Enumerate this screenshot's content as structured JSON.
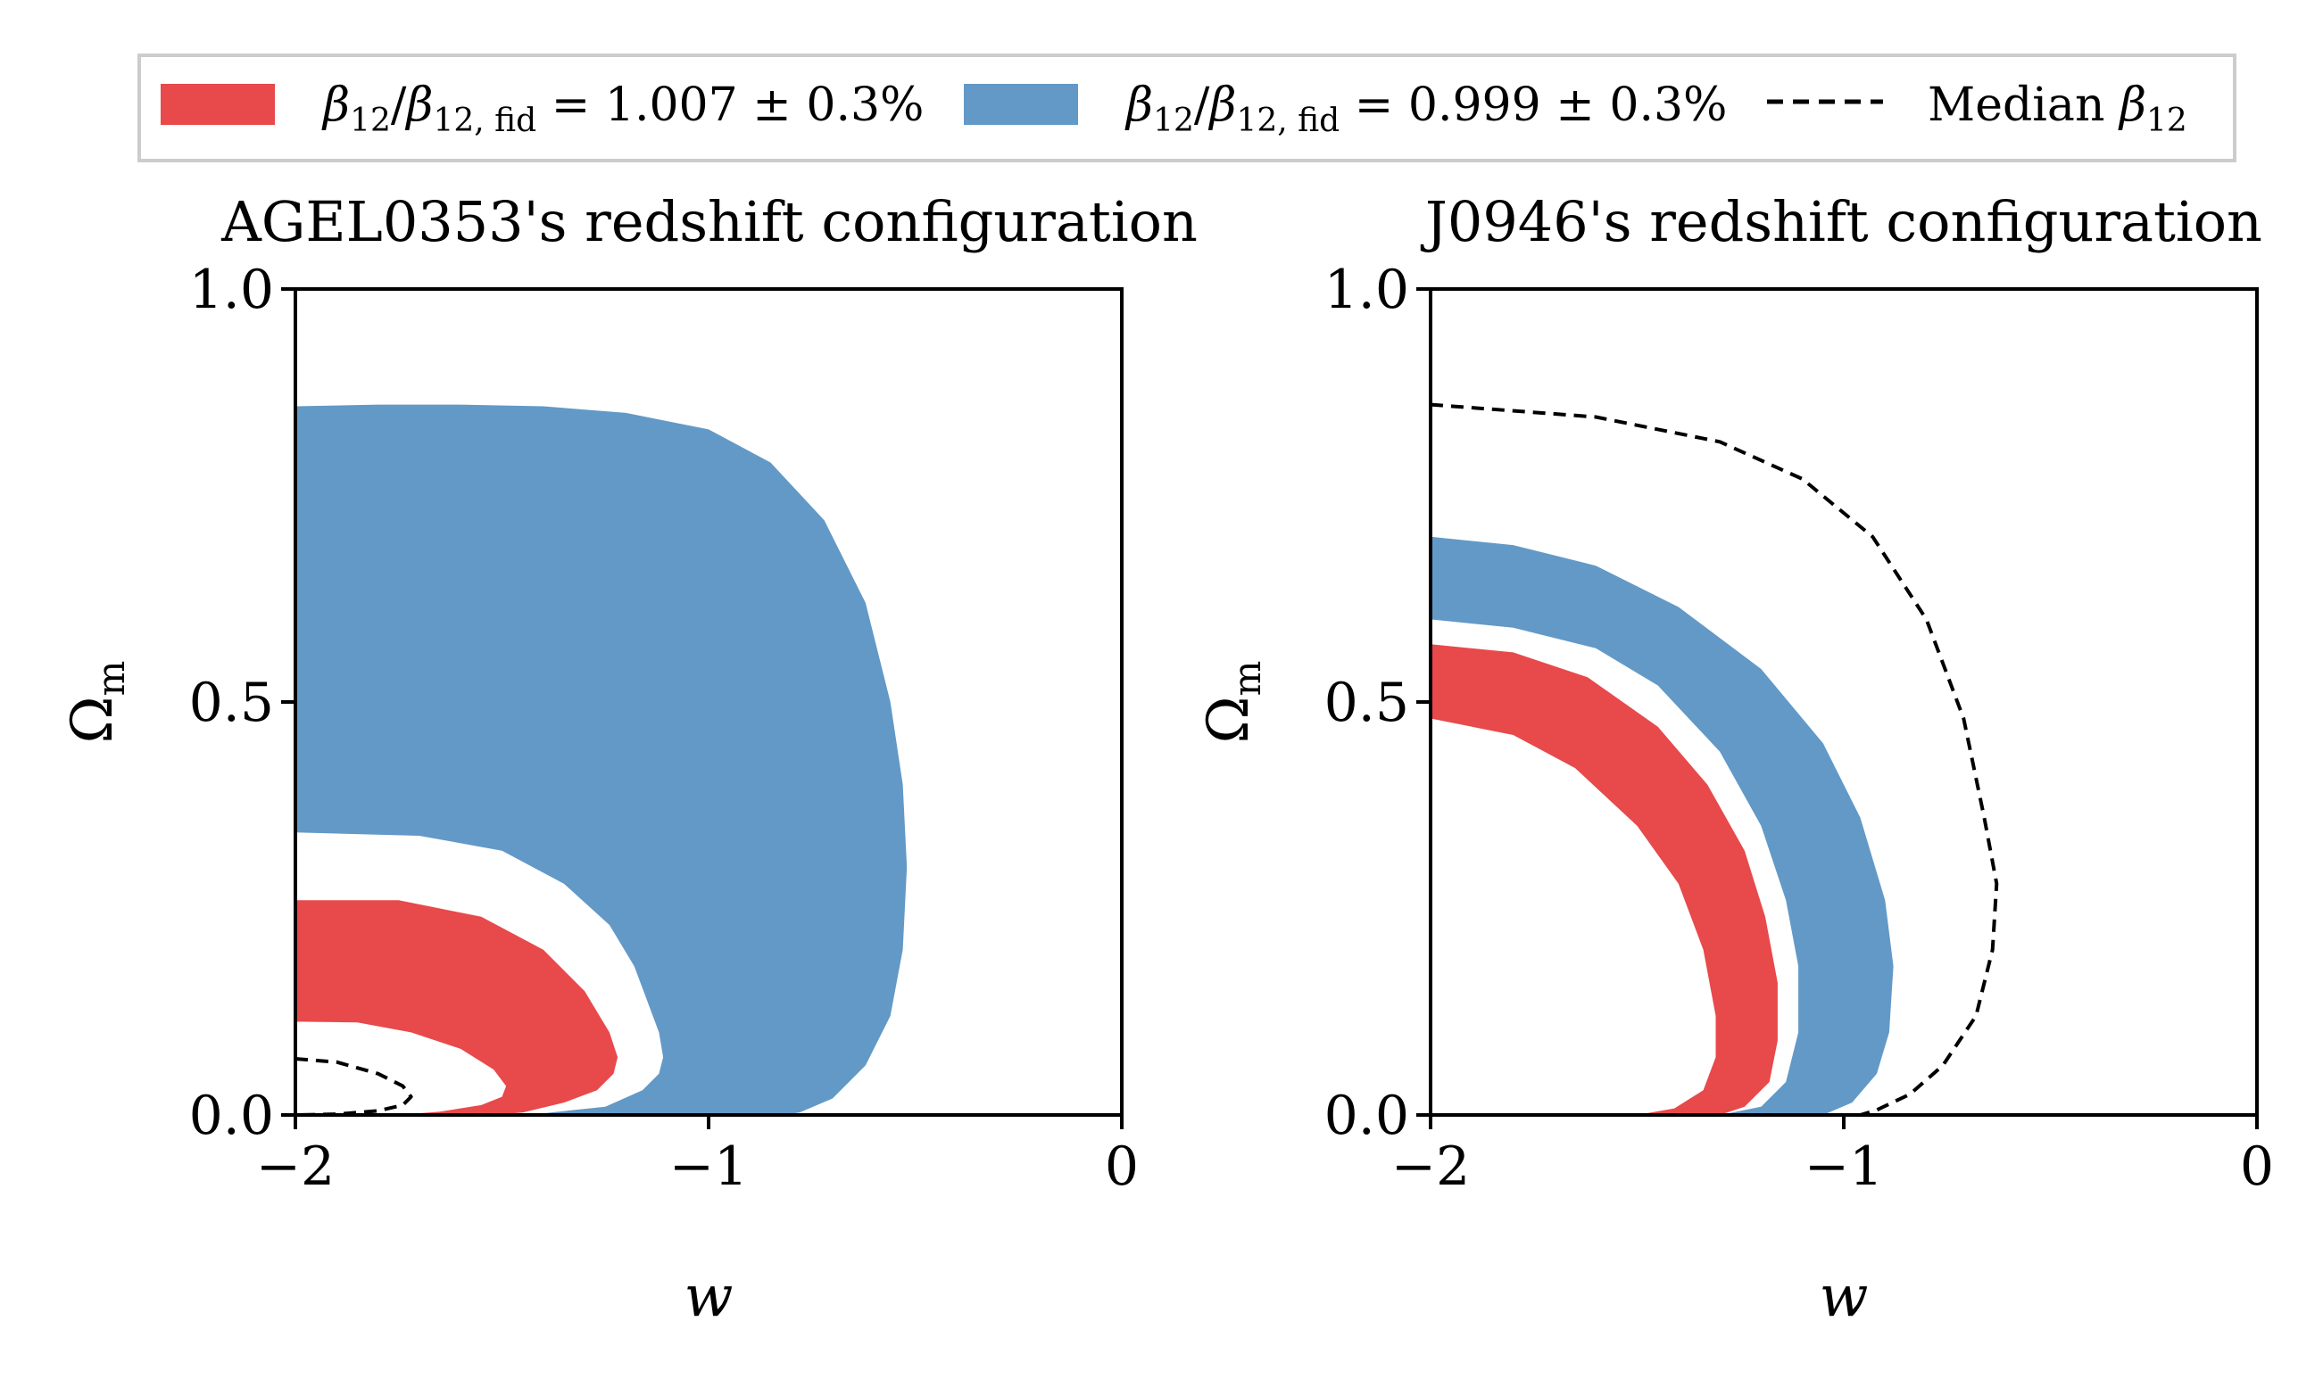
{
  "chart_data": [
    {
      "type": "area",
      "title": "AGEL0353's redshift configuration",
      "xlabel": "w",
      "ylabel": "Ω",
      "ylabel_sub": "m",
      "xlim": [
        -2,
        0
      ],
      "ylim": [
        0,
        1
      ],
      "xticks": [
        {
          "v": -2,
          "label": "−2"
        },
        {
          "v": -1,
          "label": "−1"
        },
        {
          "v": 0,
          "label": "0"
        }
      ],
      "yticks": [
        {
          "v": 0,
          "label": "0.0"
        },
        {
          "v": 0.5,
          "label": "0.5"
        },
        {
          "v": 1,
          "label": "1.0"
        }
      ],
      "series": [
        {
          "name": "blue band",
          "kind": "band",
          "color": "#6299c7",
          "outer": [
            [
              -2,
              0.858
            ],
            [
              -1.8,
              0.86
            ],
            [
              -1.6,
              0.86
            ],
            [
              -1.4,
              0.858
            ],
            [
              -1.2,
              0.85
            ],
            [
              -1.0,
              0.83
            ],
            [
              -0.85,
              0.79
            ],
            [
              -0.72,
              0.72
            ],
            [
              -0.62,
              0.62
            ],
            [
              -0.56,
              0.5
            ],
            [
              -0.53,
              0.4
            ],
            [
              -0.52,
              0.3
            ],
            [
              -0.53,
              0.2
            ],
            [
              -0.56,
              0.12
            ],
            [
              -0.62,
              0.06
            ],
            [
              -0.7,
              0.02
            ],
            [
              -0.78,
              0.003
            ],
            [
              -0.82,
              0
            ]
          ],
          "inner": [
            [
              -2,
              0.342
            ],
            [
              -1.7,
              0.338
            ],
            [
              -1.5,
              0.32
            ],
            [
              -1.35,
              0.28
            ],
            [
              -1.24,
              0.23
            ],
            [
              -1.18,
              0.18
            ],
            [
              -1.15,
              0.14
            ],
            [
              -1.12,
              0.1
            ],
            [
              -1.11,
              0.07
            ],
            [
              -1.12,
              0.05
            ],
            [
              -1.16,
              0.03
            ],
            [
              -1.25,
              0.01
            ],
            [
              -1.4,
              0.002
            ],
            [
              -1.5,
              0
            ]
          ]
        },
        {
          "name": "red band",
          "kind": "band",
          "color": "#e8494b",
          "outer": [
            [
              -2,
              0.26
            ],
            [
              -1.75,
              0.26
            ],
            [
              -1.55,
              0.24
            ],
            [
              -1.4,
              0.2
            ],
            [
              -1.3,
              0.15
            ],
            [
              -1.24,
              0.1
            ],
            [
              -1.22,
              0.07
            ],
            [
              -1.23,
              0.05
            ],
            [
              -1.27,
              0.03
            ],
            [
              -1.35,
              0.015
            ],
            [
              -1.45,
              0.003
            ],
            [
              -1.52,
              0
            ]
          ],
          "inner": [
            [
              -2,
              0.113
            ],
            [
              -1.85,
              0.112
            ],
            [
              -1.72,
              0.1
            ],
            [
              -1.6,
              0.08
            ],
            [
              -1.52,
              0.055
            ],
            [
              -1.49,
              0.035
            ],
            [
              -1.5,
              0.022
            ],
            [
              -1.55,
              0.012
            ],
            [
              -1.65,
              0.004
            ],
            [
              -1.75,
              0
            ]
          ]
        },
        {
          "name": "Median β12",
          "kind": "dashed",
          "color": "#000000",
          "points": [
            [
              -2,
              0.068
            ],
            [
              -1.9,
              0.064
            ],
            [
              -1.8,
              0.05
            ],
            [
              -1.74,
              0.035
            ],
            [
              -1.72,
              0.022
            ],
            [
              -1.74,
              0.012
            ],
            [
              -1.8,
              0.005
            ],
            [
              -1.9,
              0.001
            ],
            [
              -2,
              0
            ]
          ]
        }
      ]
    },
    {
      "type": "area",
      "title": "J0946's redshift configuration",
      "xlabel": "w",
      "ylabel": "Ω",
      "ylabel_sub": "m",
      "xlim": [
        -2,
        0
      ],
      "ylim": [
        0,
        1
      ],
      "xticks": [
        {
          "v": -2,
          "label": "−2"
        },
        {
          "v": -1,
          "label": "−1"
        },
        {
          "v": 0,
          "label": "0"
        }
      ],
      "yticks": [
        {
          "v": 0,
          "label": "0.0"
        },
        {
          "v": 0.5,
          "label": "0.5"
        },
        {
          "v": 1,
          "label": "1.0"
        }
      ],
      "series": [
        {
          "name": "blue band",
          "kind": "band",
          "color": "#6299c7",
          "outer": [
            [
              -2,
              0.7
            ],
            [
              -1.8,
              0.69
            ],
            [
              -1.6,
              0.665
            ],
            [
              -1.4,
              0.615
            ],
            [
              -1.2,
              0.54
            ],
            [
              -1.05,
              0.45
            ],
            [
              -0.96,
              0.36
            ],
            [
              -0.9,
              0.26
            ],
            [
              -0.88,
              0.18
            ],
            [
              -0.89,
              0.1
            ],
            [
              -0.92,
              0.05
            ],
            [
              -0.98,
              0.015
            ],
            [
              -1.05,
              0
            ]
          ],
          "inner": [
            [
              -2,
              0.6
            ],
            [
              -1.8,
              0.59
            ],
            [
              -1.6,
              0.565
            ],
            [
              -1.45,
              0.52
            ],
            [
              -1.3,
              0.44
            ],
            [
              -1.2,
              0.35
            ],
            [
              -1.14,
              0.26
            ],
            [
              -1.11,
              0.18
            ],
            [
              -1.11,
              0.1
            ],
            [
              -1.14,
              0.04
            ],
            [
              -1.2,
              0.01
            ],
            [
              -1.3,
              0
            ]
          ]
        },
        {
          "name": "red band",
          "kind": "band",
          "color": "#e8494b",
          "outer": [
            [
              -2,
              0.57
            ],
            [
              -1.8,
              0.56
            ],
            [
              -1.62,
              0.53
            ],
            [
              -1.45,
              0.47
            ],
            [
              -1.33,
              0.4
            ],
            [
              -1.24,
              0.32
            ],
            [
              -1.19,
              0.24
            ],
            [
              -1.16,
              0.16
            ],
            [
              -1.16,
              0.09
            ],
            [
              -1.18,
              0.04
            ],
            [
              -1.24,
              0.01
            ],
            [
              -1.3,
              0
            ]
          ],
          "inner": [
            [
              -2,
              0.48
            ],
            [
              -1.8,
              0.46
            ],
            [
              -1.65,
              0.42
            ],
            [
              -1.5,
              0.35
            ],
            [
              -1.4,
              0.28
            ],
            [
              -1.34,
              0.2
            ],
            [
              -1.31,
              0.12
            ],
            [
              -1.31,
              0.07
            ],
            [
              -1.34,
              0.03
            ],
            [
              -1.41,
              0.008
            ],
            [
              -1.5,
              0
            ]
          ]
        },
        {
          "name": "Median β12",
          "kind": "dashed",
          "color": "#000000",
          "points": [
            [
              -2,
              0.86
            ],
            [
              -1.6,
              0.845
            ],
            [
              -1.3,
              0.815
            ],
            [
              -1.1,
              0.77
            ],
            [
              -0.93,
              0.7
            ],
            [
              -0.8,
              0.6
            ],
            [
              -0.71,
              0.48
            ],
            [
              -0.66,
              0.36
            ],
            [
              -0.63,
              0.28
            ],
            [
              -0.64,
              0.2
            ],
            [
              -0.68,
              0.12
            ],
            [
              -0.76,
              0.06
            ],
            [
              -0.84,
              0.025
            ],
            [
              -0.92,
              0.006
            ],
            [
              -0.96,
              0
            ]
          ]
        }
      ]
    }
  ],
  "legend": {
    "placement": "top",
    "entries": [
      {
        "kind": "patch",
        "color": "#e8494b",
        "label": "β12/β12, fid = 1.007 ± 0.3%"
      },
      {
        "kind": "patch",
        "color": "#6299c7",
        "label": "β12/β12, fid = 0.999 ± 0.3%"
      },
      {
        "kind": "line",
        "color": "#000000",
        "label": "Median β12"
      }
    ],
    "red_label_parts": {
      "a": "β",
      "a_sub": "12",
      "slash": "/",
      "b": "β",
      "b_sub": "12, fid",
      "rest": " = 1.007 ± 0.3%"
    },
    "blue_label_parts": {
      "a": "β",
      "a_sub": "12",
      "slash": "/",
      "b": "β",
      "b_sub": "12, fid",
      "rest": " = 0.999 ± 0.3%"
    },
    "median_label_parts": {
      "text": "Median ",
      "a": "β",
      "a_sub": "12"
    }
  }
}
